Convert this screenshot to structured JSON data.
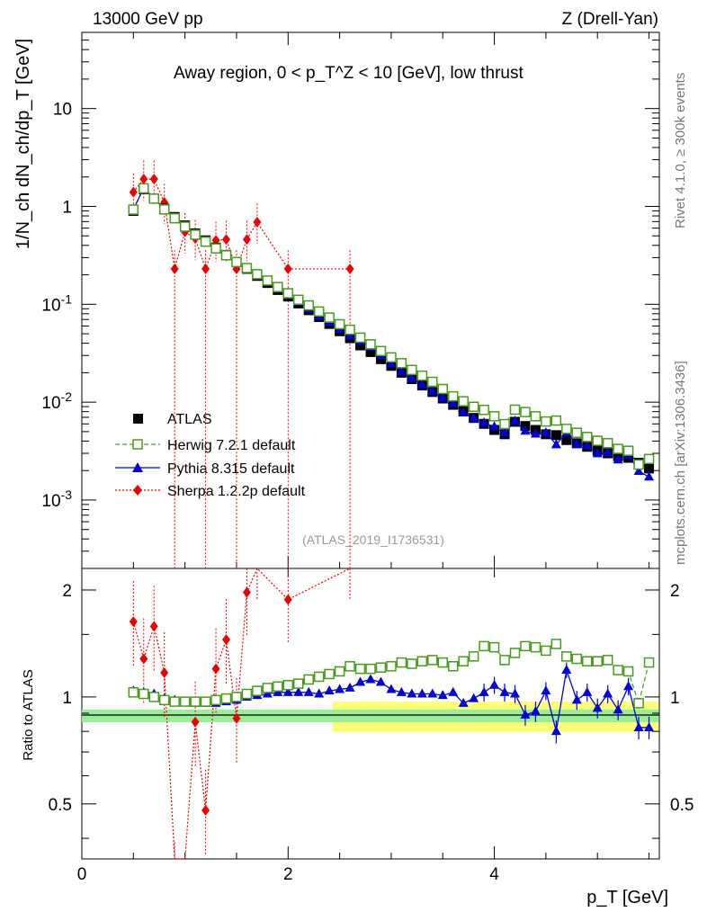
{
  "header": {
    "left": "13000 GeV pp",
    "right": "Z (Drell-Yan)",
    "side_top": "Rivet 4.1.0, ≥ 300k events",
    "side_bottom": "mcplots.cern.ch [arXiv:1306.3436]",
    "analysis_id": "(ATLAS_2019_I1736531)"
  },
  "chart_data": {
    "type": "line",
    "title": "Away region, 0 < p_T^Z < 10 [GeV], low thrust",
    "xlabel": "p_T [GeV]",
    "ylabel": "1/N_ch dN_ch/dp_T [GeV]",
    "ratio_ylabel": "Ratio to ATLAS",
    "xlim": [
      0,
      5.6
    ],
    "ylim": [
      0.0002,
      60
    ],
    "ratio_ylim": [
      0.35,
      2.3
    ],
    "yscale": "log",
    "x_ticks": [
      "0",
      "2",
      "4"
    ],
    "y_ticks": [
      "10^-3",
      "10^-2",
      "10^-1",
      "1",
      "10"
    ],
    "ratio_ticks": [
      "0.5",
      "1",
      "2"
    ],
    "x": [
      0.5,
      0.6,
      0.7,
      0.8,
      0.9,
      1.0,
      1.1,
      1.2,
      1.3,
      1.4,
      1.5,
      1.6,
      1.7,
      1.8,
      1.9,
      2.0,
      2.1,
      2.2,
      2.3,
      2.4,
      2.5,
      2.6,
      2.7,
      2.8,
      2.9,
      3.0,
      3.1,
      3.2,
      3.3,
      3.4,
      3.5,
      3.6,
      3.7,
      3.8,
      3.9,
      4.0,
      4.1,
      4.2,
      4.3,
      4.4,
      4.5,
      4.6,
      4.7,
      4.8,
      4.9,
      5.0,
      5.1,
      5.2,
      5.3,
      5.4,
      5.5
    ],
    "series": [
      {
        "name": "ATLAS",
        "color": "#000000",
        "values": [
          0.9,
          1.5,
          1.2,
          0.95,
          0.78,
          0.64,
          0.53,
          0.45,
          0.38,
          0.32,
          0.27,
          0.23,
          0.195,
          0.165,
          0.14,
          0.12,
          0.102,
          0.087,
          0.074,
          0.063,
          0.053,
          0.045,
          0.038,
          0.0325,
          0.0275,
          0.0235,
          0.02,
          0.0172,
          0.0148,
          0.0127,
          0.0109,
          0.0094,
          0.0081,
          0.0069,
          0.006,
          0.0052,
          0.0047,
          0.0063,
          0.0057,
          0.0052,
          0.0047,
          0.0046,
          0.0041,
          0.0038,
          0.0035,
          0.0032,
          0.003,
          0.0028,
          0.0027,
          0.0024,
          0.0021
        ]
      },
      {
        "name": "Herwig 7.2.1 default",
        "color": "#4a9a1a",
        "ratio": [
          1.03,
          1.02,
          1.0,
          0.98,
          0.97,
          0.97,
          0.97,
          0.97,
          0.98,
          0.99,
          1.0,
          1.02,
          1.04,
          1.06,
          1.07,
          1.08,
          1.09,
          1.12,
          1.14,
          1.16,
          1.18,
          1.22,
          1.2,
          1.2,
          1.21,
          1.22,
          1.25,
          1.24,
          1.26,
          1.27,
          1.25,
          1.22,
          1.26,
          1.3,
          1.39,
          1.38,
          1.27,
          1.33,
          1.39,
          1.38,
          1.35,
          1.41,
          1.3,
          1.28,
          1.26,
          1.26,
          1.27,
          1.19,
          1.18,
          0.96,
          1.25
        ]
      },
      {
        "name": "Pythia 8.315 default",
        "color": "#0000dd",
        "ratio": [
          1.04,
          1.03,
          1.02,
          0.99,
          0.98,
          0.97,
          0.96,
          0.96,
          0.96,
          0.97,
          0.98,
          1.0,
          1.01,
          1.02,
          1.03,
          1.03,
          1.03,
          1.03,
          1.02,
          1.04,
          1.05,
          1.06,
          1.1,
          1.12,
          1.1,
          1.05,
          1.03,
          1.02,
          1.02,
          1.02,
          1.01,
          1.03,
          0.96,
          0.99,
          1.03,
          1.08,
          1.03,
          1.02,
          0.89,
          0.91,
          1.04,
          0.8,
          1.19,
          0.98,
          1.03,
          0.93,
          1.02,
          0.92,
          1.07,
          0.82,
          0.82
        ]
      },
      {
        "name": "Sherpa 1.2.2p default",
        "color": "#ee0000",
        "x": [
          0.5,
          0.6,
          0.7,
          0.8,
          0.9,
          1.0,
          1.1,
          1.2,
          1.3,
          1.4,
          1.5,
          1.6,
          1.7,
          2.0,
          2.6
        ],
        "values": [
          1.4,
          1.9,
          1.9,
          1.1,
          0.23,
          0.55,
          0.47,
          0.23,
          0.45,
          0.46,
          0.23,
          0.46,
          0.69,
          0.23,
          0.23
        ],
        "ratio": [
          1.63,
          1.28,
          1.58,
          1.17,
          0.3,
          0.2,
          0.85,
          0.48,
          1.2,
          1.45,
          0.87,
          1.97,
          2.5,
          1.88,
          2.5
        ]
      }
    ]
  }
}
